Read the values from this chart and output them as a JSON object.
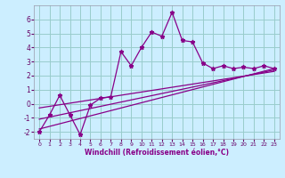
{
  "xlabel": "Windchill (Refroidissement éolien,°C)",
  "background_color": "#cceeff",
  "grid_color": "#99cccc",
  "line_color": "#880088",
  "xlim": [
    -0.5,
    23.5
  ],
  "ylim": [
    -2.5,
    7.0
  ],
  "yticks": [
    -2,
    -1,
    0,
    1,
    2,
    3,
    4,
    5,
    6
  ],
  "xticks": [
    0,
    1,
    2,
    3,
    4,
    5,
    6,
    7,
    8,
    9,
    10,
    11,
    12,
    13,
    14,
    15,
    16,
    17,
    18,
    19,
    20,
    21,
    22,
    23
  ],
  "series1_x": [
    0,
    1,
    2,
    3,
    4,
    5,
    6,
    7,
    8,
    9,
    10,
    11,
    12,
    13,
    14,
    15,
    16,
    17,
    18,
    19,
    20,
    21,
    22,
    23
  ],
  "series1_y": [
    -2.0,
    -0.8,
    0.6,
    -0.8,
    -2.2,
    -0.1,
    0.4,
    0.5,
    3.7,
    2.7,
    4.0,
    5.1,
    4.8,
    6.5,
    4.5,
    4.4,
    2.9,
    2.5,
    2.7,
    2.5,
    2.6,
    2.5,
    2.7,
    2.5
  ],
  "line2_x0": 0,
  "line2_x1": 23,
  "line2_y0": -1.8,
  "line2_y1": 2.5,
  "line3_x0": 0,
  "line3_x1": 23,
  "line3_y0": -1.1,
  "line3_y1": 2.4,
  "line4_x0": 0,
  "line4_x1": 23,
  "line4_y0": -0.3,
  "line4_y1": 2.3
}
